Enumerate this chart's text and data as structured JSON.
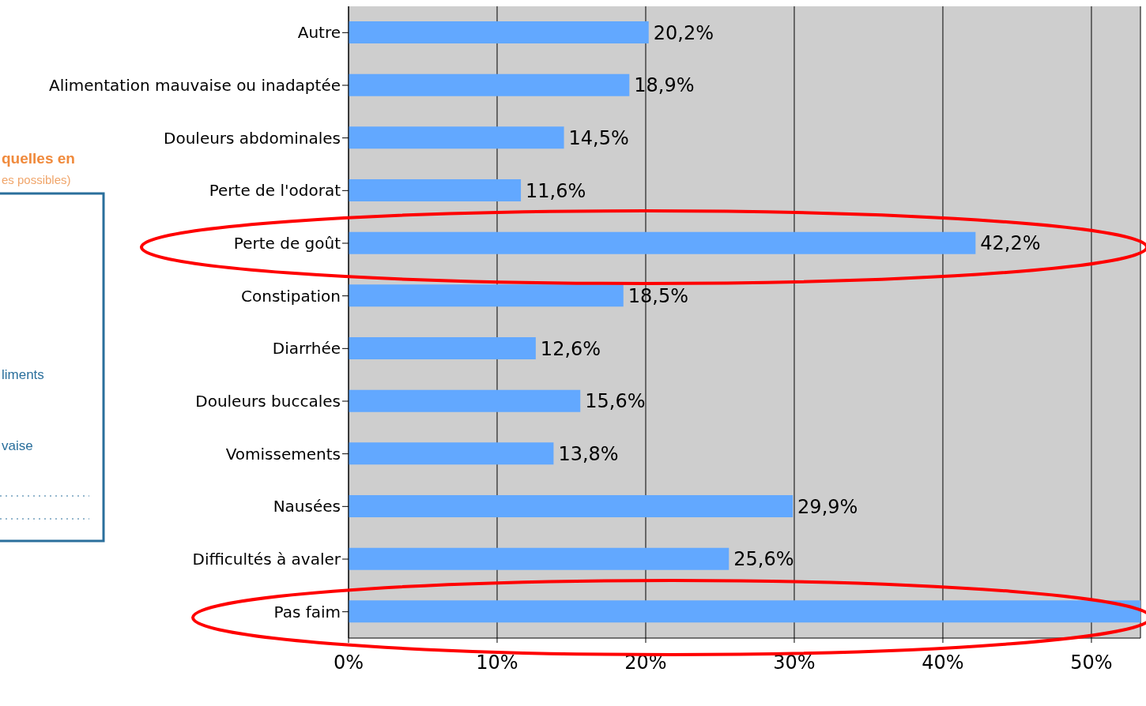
{
  "chart_data": {
    "type": "bar",
    "orientation": "horizontal",
    "categories": [
      "Autre",
      "Alimentation mauvaise ou inadaptée",
      "Douleurs abdominales",
      "Perte de l'odorat",
      "Perte de goût",
      "Constipation",
      "Diarrhée",
      "Douleurs buccales",
      "Vomissements",
      "Nausées",
      "Difficultés à avaler",
      "Pas faim"
    ],
    "values": [
      20.2,
      18.9,
      14.5,
      11.6,
      42.2,
      18.5,
      12.6,
      15.6,
      13.8,
      29.9,
      25.6,
      53.3
    ],
    "value_labels": [
      "20,2%",
      "18,9%",
      "14,5%",
      "11,6%",
      "42,2%",
      "18,5%",
      "12,6%",
      "15,6%",
      "13,8%",
      "29,9%",
      "25,6%",
      null
    ],
    "color": "#62a8ff",
    "xlim": [
      0,
      53.3
    ],
    "xticks": [
      {
        "value": 0,
        "label": "0%"
      },
      {
        "value": 10,
        "label": "10%"
      },
      {
        "value": 20,
        "label": "20%"
      },
      {
        "value": 30,
        "label": "30%"
      },
      {
        "value": 40,
        "label": "40%"
      },
      {
        "value": 50,
        "label": "50%"
      }
    ],
    "grid": "x",
    "annotations": [
      "quelles en",
      "es possibles)",
      "liments",
      "vaise"
    ]
  }
}
